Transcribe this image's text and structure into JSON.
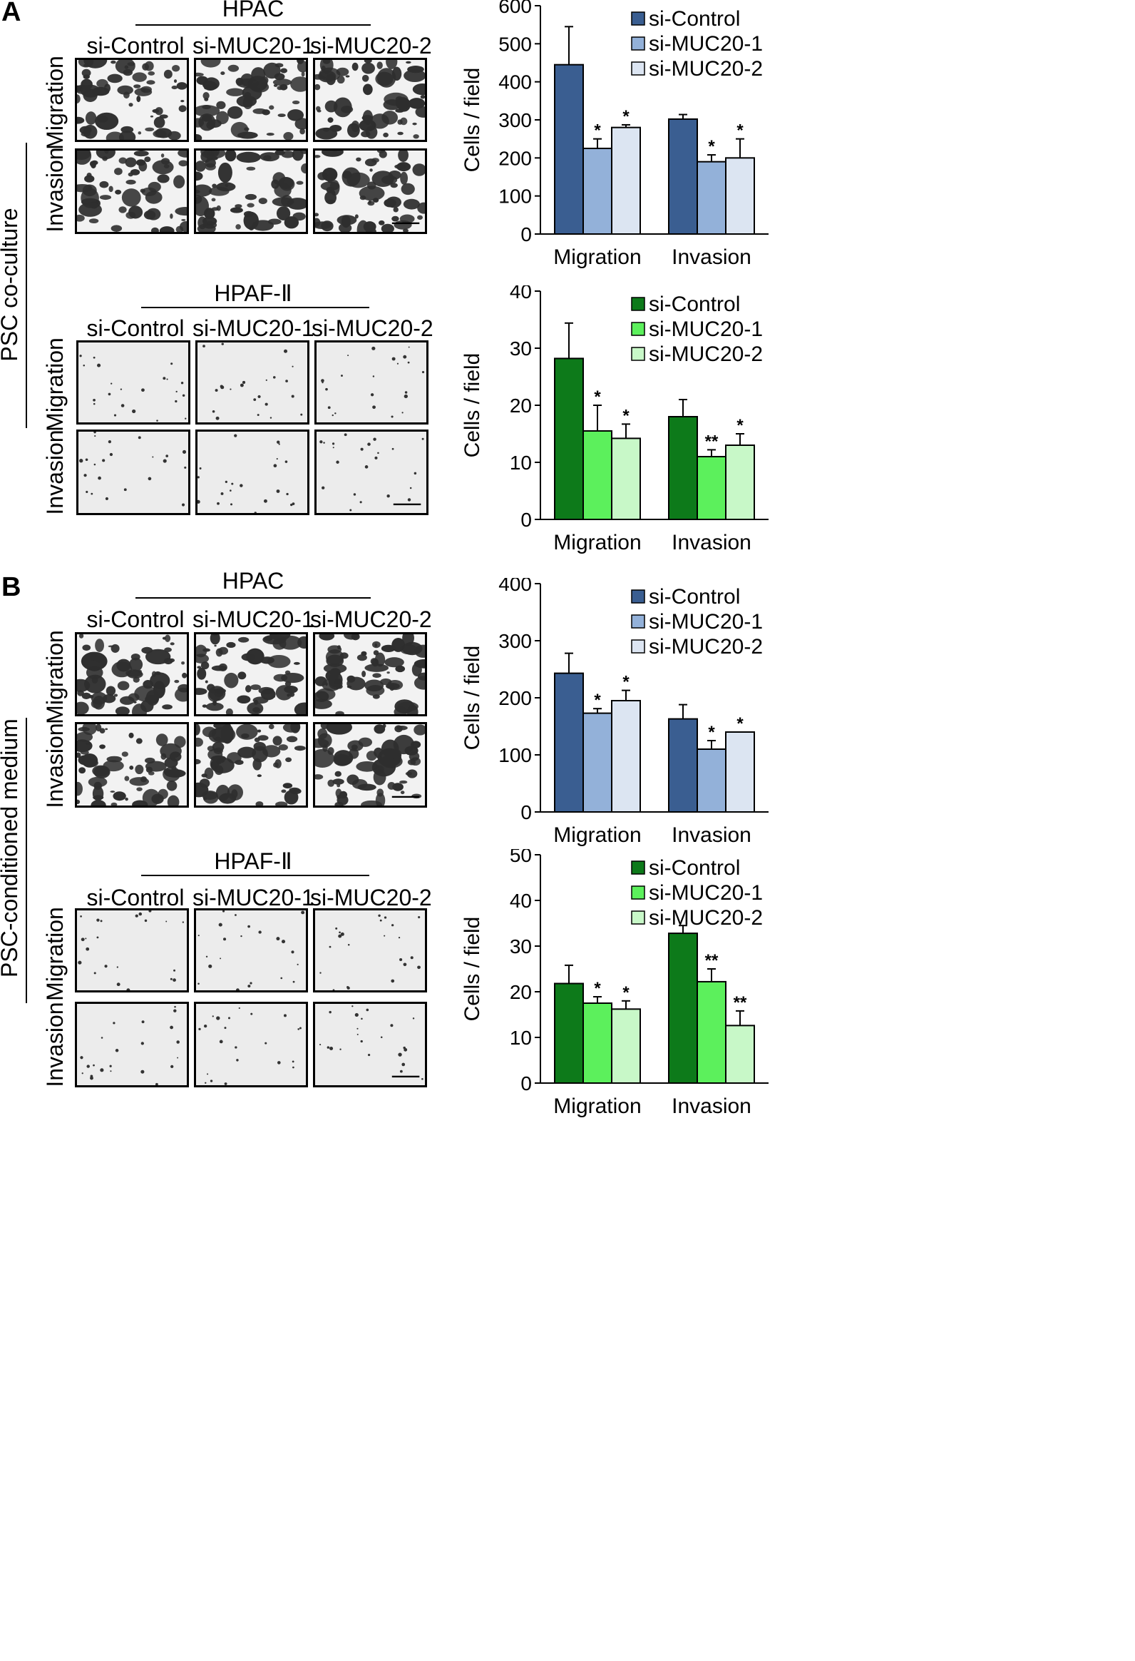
{
  "panels": [
    {
      "letter": "A",
      "side_label": "PSC co-culture",
      "groups": [
        {
          "cell_line": "HPAC",
          "columns": [
            "si-Control",
            "si-MUC20-1",
            "si-MUC20-2"
          ],
          "rows": [
            "Migration",
            "Invasion"
          ]
        },
        {
          "cell_line": "HPAF-Ⅱ",
          "columns": [
            "si-Control",
            "si-MUC20-1",
            "si-MUC20-2"
          ],
          "rows": [
            "Migration",
            "Invasion"
          ]
        }
      ]
    },
    {
      "letter": "B",
      "side_label": "PSC-conditioned medium",
      "groups": [
        {
          "cell_line": "HPAC",
          "columns": [
            "si-Control",
            "si-MUC20-1",
            "si-MUC20-2"
          ],
          "rows": [
            "Migration",
            "Invasion"
          ]
        },
        {
          "cell_line": "HPAF-Ⅱ",
          "columns": [
            "si-Control",
            "si-MUC20-1",
            "si-MUC20-2"
          ],
          "rows": [
            "Migration",
            "Invasion"
          ]
        }
      ]
    }
  ],
  "chart_data": [
    {
      "type": "bar",
      "id": "A-HPAC",
      "ylabel": "Cells / field",
      "ylim": [
        0,
        600
      ],
      "yticks": [
        0,
        100,
        200,
        300,
        400,
        500,
        600
      ],
      "categories": [
        "Migration",
        "Invasion"
      ],
      "legend_position": "top-right",
      "colors": [
        "#3a5e91",
        "#93b1d9",
        "#dce5f2"
      ],
      "series": [
        {
          "name": "si-Control",
          "values": [
            445,
            302
          ],
          "errors": [
            100,
            12
          ],
          "marks": [
            "",
            ""
          ]
        },
        {
          "name": "si-MUC20-1",
          "values": [
            225,
            190
          ],
          "errors": [
            25,
            18
          ],
          "marks": [
            "*",
            "*"
          ]
        },
        {
          "name": "si-MUC20-2",
          "values": [
            280,
            200
          ],
          "errors": [
            7,
            50
          ],
          "marks": [
            "*",
            "*"
          ]
        }
      ]
    },
    {
      "type": "bar",
      "id": "A-HPAF",
      "ylabel": "Cells / field",
      "ylim": [
        0,
        40
      ],
      "yticks": [
        0,
        10,
        20,
        30,
        40
      ],
      "categories": [
        "Migration",
        "Invasion"
      ],
      "legend_position": "top-right",
      "colors": [
        "#0d7a1a",
        "#5cf05c",
        "#c8f8c8"
      ],
      "series": [
        {
          "name": "si-Control",
          "values": [
            28.2,
            18
          ],
          "errors": [
            6.2,
            3
          ],
          "marks": [
            "",
            ""
          ]
        },
        {
          "name": "si-MUC20-1",
          "values": [
            15.5,
            11
          ],
          "errors": [
            4.5,
            1.2
          ],
          "marks": [
            "*",
            "**"
          ]
        },
        {
          "name": "si-MUC20-2",
          "values": [
            14.2,
            13
          ],
          "errors": [
            2.5,
            2
          ],
          "marks": [
            "*",
            "*"
          ]
        }
      ]
    },
    {
      "type": "bar",
      "id": "B-HPAC",
      "ylabel": "Cells / field",
      "ylim": [
        0,
        400
      ],
      "yticks": [
        0,
        100,
        200,
        300,
        400
      ],
      "categories": [
        "Migration",
        "Invasion"
      ],
      "legend_position": "top-right",
      "colors": [
        "#3a5e91",
        "#93b1d9",
        "#dce5f2"
      ],
      "series": [
        {
          "name": "si-Control",
          "values": [
            243,
            163
          ],
          "errors": [
            35,
            25
          ],
          "marks": [
            "",
            ""
          ]
        },
        {
          "name": "si-MUC20-1",
          "values": [
            173,
            110
          ],
          "errors": [
            8,
            15
          ],
          "marks": [
            "*",
            "*"
          ]
        },
        {
          "name": "si-MUC20-2",
          "values": [
            195,
            140
          ],
          "errors": [
            18,
            0
          ],
          "marks": [
            "*",
            "*"
          ]
        }
      ]
    },
    {
      "type": "bar",
      "id": "B-HPAF",
      "ylabel": "Cells / field",
      "ylim": [
        0,
        50
      ],
      "yticks": [
        0,
        10,
        20,
        30,
        40,
        50
      ],
      "categories": [
        "Migration",
        "Invasion"
      ],
      "legend_position": "top-right",
      "colors": [
        "#0d7a1a",
        "#5cf05c",
        "#c8f8c8"
      ],
      "series": [
        {
          "name": "si-Control",
          "values": [
            21.8,
            32.8
          ],
          "errors": [
            4,
            1.7
          ],
          "marks": [
            "",
            ""
          ]
        },
        {
          "name": "si-MUC20-1",
          "values": [
            17.5,
            22.2
          ],
          "errors": [
            1.4,
            2.8
          ],
          "marks": [
            "*",
            "**"
          ]
        },
        {
          "name": "si-MUC20-2",
          "values": [
            16.2,
            12.6
          ],
          "errors": [
            1.8,
            3.2
          ],
          "marks": [
            "*",
            "**"
          ]
        }
      ]
    }
  ]
}
